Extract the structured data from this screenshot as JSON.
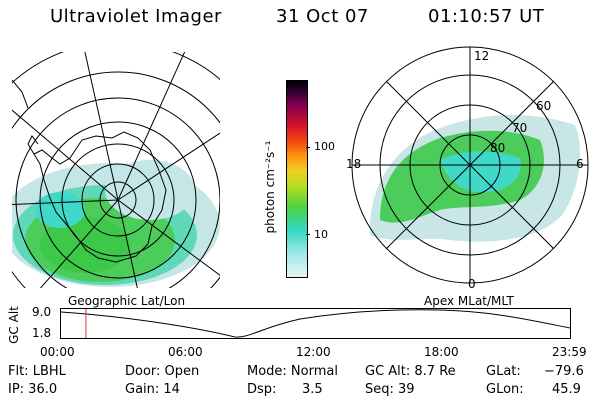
{
  "header": {
    "title": "Ultraviolet Imager",
    "date": "31 Oct 07",
    "time": "01:10:57 UT"
  },
  "colorbar": {
    "unit_label": "photon cm⁻²s⁻¹",
    "ticks": [
      "100",
      "10"
    ]
  },
  "panels": {
    "left_caption": "Geographic Lat/Lon",
    "right_caption": "Apex MLat/MLT",
    "right_mlt_labels": [
      "12",
      "18",
      "6",
      "0"
    ],
    "right_mlat_labels": [
      "60",
      "70",
      "80"
    ]
  },
  "timeline": {
    "axis_label": "GC Alt",
    "y_ticks": [
      "9.0",
      "1.8"
    ],
    "x_ticks": [
      "00:00",
      "06:00",
      "12:00",
      "18:00",
      "23:59"
    ],
    "current_time_fraction": 0.049
  },
  "footer": {
    "row1": {
      "flt": "Flt: LBHL",
      "door": "Door: Open",
      "mode": "Mode: Normal",
      "gcalt": "GC Alt: 8.7 Re",
      "glat_label": "GLat:",
      "glat_value": "−79.6"
    },
    "row2": {
      "ip": "IP: 36.0",
      "gain": "Gain: 14",
      "dsp_label": "Dsp:",
      "dsp_value": "3.5",
      "seq": "Seq: 39",
      "glon_label": "GLon:",
      "glon_value": "45.9"
    }
  },
  "colors": {
    "aurora_green": "#3ccc3c",
    "aurora_light": "#b8e0e0",
    "aurora_cyan": "#40d8c8",
    "marker_red": "#e03030"
  }
}
